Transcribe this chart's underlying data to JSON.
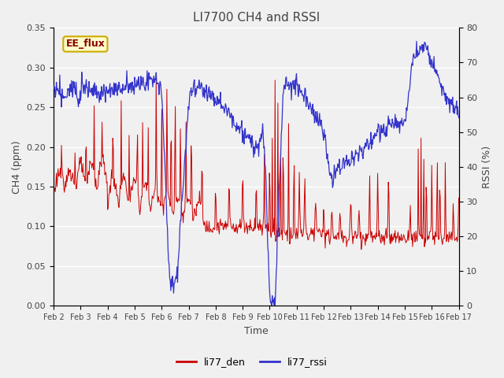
{
  "title": "LI7700 CH4 and RSSI",
  "xlabel": "Time",
  "ylabel_left": "CH4 (ppm)",
  "ylabel_right": "RSSI (%)",
  "ylim_left": [
    0.0,
    0.35
  ],
  "ylim_right": [
    0,
    80
  ],
  "yticks_left": [
    0.0,
    0.05,
    0.1,
    0.15,
    0.2,
    0.25,
    0.3,
    0.35
  ],
  "yticks_right": [
    0,
    10,
    20,
    30,
    40,
    50,
    60,
    70,
    80
  ],
  "xtick_labels": [
    "Feb 2",
    "Feb 3",
    "Feb 4",
    "Feb 5",
    "Feb 6",
    "Feb 7",
    "Feb 8",
    "Feb 9",
    "Feb 10",
    "Feb 11",
    "Feb 12",
    "Feb 13",
    "Feb 14",
    "Feb 15",
    "Feb 16",
    "Feb 17"
  ],
  "legend_labels": [
    "li77_den",
    "li77_rssi"
  ],
  "legend_colors": [
    "#cc0000",
    "#3333cc"
  ],
  "annotation_text": "EE_flux",
  "annotation_box_facecolor": "#ffffcc",
  "annotation_box_edgecolor": "#ccaa00",
  "line_color_red": "#cc0000",
  "line_color_blue": "#3333cc",
  "bg_color": "#f0f0f0",
  "grid_color": "#ffffff",
  "title_color": "#444444",
  "axis_label_color": "#444444",
  "tick_label_color": "#444444",
  "figwidth": 6.4,
  "figheight": 4.8,
  "dpi": 100
}
